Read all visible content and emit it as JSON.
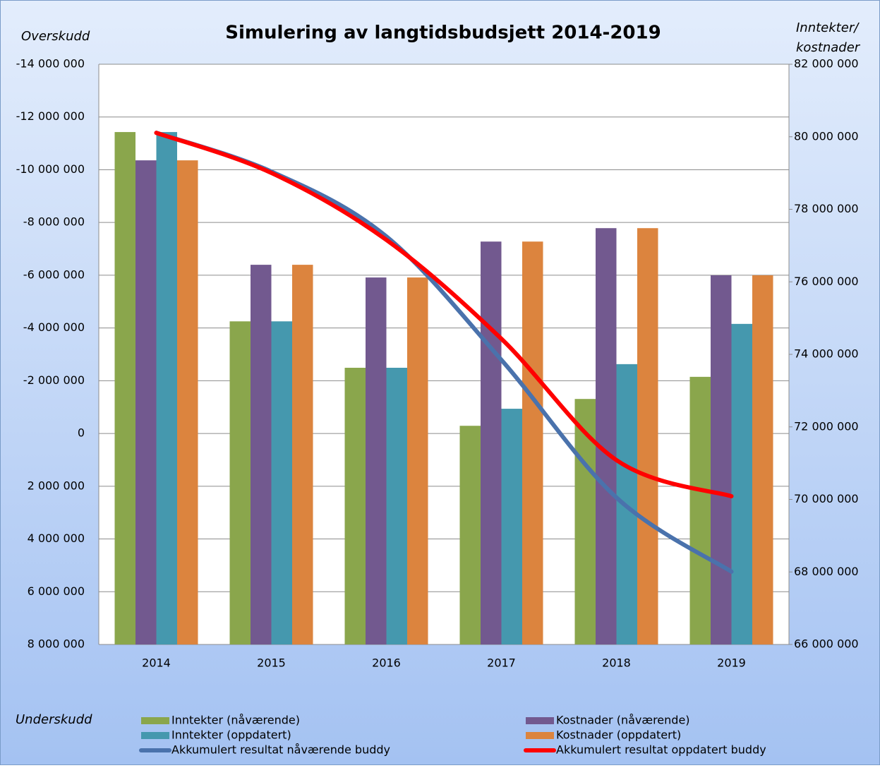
{
  "chart_data": {
    "type": "bar-line",
    "title": "Simulering av langtidsbudsjett 2014-2019",
    "ylabel_top": "Overskudd",
    "ylabel_bottom": "Underskudd",
    "y2label": [
      "Inntekter/",
      "kostnader"
    ],
    "categories": [
      "2014",
      "2015",
      "2016",
      "2017",
      "2018",
      "2019"
    ],
    "ylim": [
      -14000000,
      8000000
    ],
    "y_reversed": true,
    "yticks": [
      {
        "value": -14000000,
        "label": "-14 000 000"
      },
      {
        "value": -12000000,
        "label": "-12 000 000"
      },
      {
        "value": -10000000,
        "label": "-10 000 000"
      },
      {
        "value": -8000000,
        "label": "-8 000 000"
      },
      {
        "value": -6000000,
        "label": "-6 000 000"
      },
      {
        "value": -4000000,
        "label": "-4 000 000"
      },
      {
        "value": -2000000,
        "label": "-2 000 000"
      },
      0,
      {
        "value": 2000000,
        "label": "2 000 000"
      },
      {
        "value": 4000000,
        "label": "4 000 000"
      },
      {
        "value": 6000000,
        "label": "6 000 000"
      },
      {
        "value": 8000000,
        "label": "8 000 000"
      }
    ],
    "y2lim": [
      66000000,
      82000000
    ],
    "y2ticks": [
      {
        "value": 66000000,
        "label": "66 000 000"
      },
      {
        "value": 68000000,
        "label": "68 000 000"
      },
      {
        "value": 70000000,
        "label": "70 000 000"
      },
      {
        "value": 72000000,
        "label": "72 000 000"
      },
      {
        "value": 74000000,
        "label": "74 000 000"
      },
      {
        "value": 76000000,
        "label": "76 000 000"
      },
      {
        "value": 78000000,
        "label": "78 000 000"
      },
      {
        "value": 80000000,
        "label": "80 000 000"
      },
      {
        "value": 82000000,
        "label": "82 000 000"
      }
    ],
    "grid": true,
    "legend": "bottom",
    "series": [
      {
        "name": "Inntekter (nåværende)",
        "type": "bar",
        "axis": "y2",
        "color": "#8aa64c",
        "values": [
          80130000,
          74910000,
          73630000,
          72030000,
          72770000,
          73380000
        ]
      },
      {
        "name": "Kostnader (nåværende)",
        "type": "bar",
        "axis": "y2",
        "color": "#72598f",
        "values": [
          79350000,
          76470000,
          76120000,
          77110000,
          77480000,
          76180000
        ]
      },
      {
        "name": "Inntekter (oppdatert)",
        "type": "bar",
        "axis": "y2",
        "color": "#4598ae",
        "values": [
          80130000,
          74910000,
          73630000,
          72500000,
          73730000,
          74840000
        ]
      },
      {
        "name": "Kostnader (oppdatert)",
        "type": "bar",
        "axis": "y2",
        "color": "#dc843e",
        "values": [
          79350000,
          76470000,
          76120000,
          77110000,
          77480000,
          76180000
        ]
      },
      {
        "name": "Akkumulert resultat nåværende buddy",
        "type": "line",
        "color": "#4a72ac",
        "values": [
          -11400000,
          -9930000,
          -7470000,
          -2790000,
          2430000,
          5240000
        ]
      },
      {
        "name": "Akkumulert resultat oppdatert buddy",
        "type": "line",
        "color": "#ff0000",
        "values": [
          -11400000,
          -9880000,
          -7340000,
          -3590000,
          1010000,
          2380000
        ]
      }
    ]
  }
}
